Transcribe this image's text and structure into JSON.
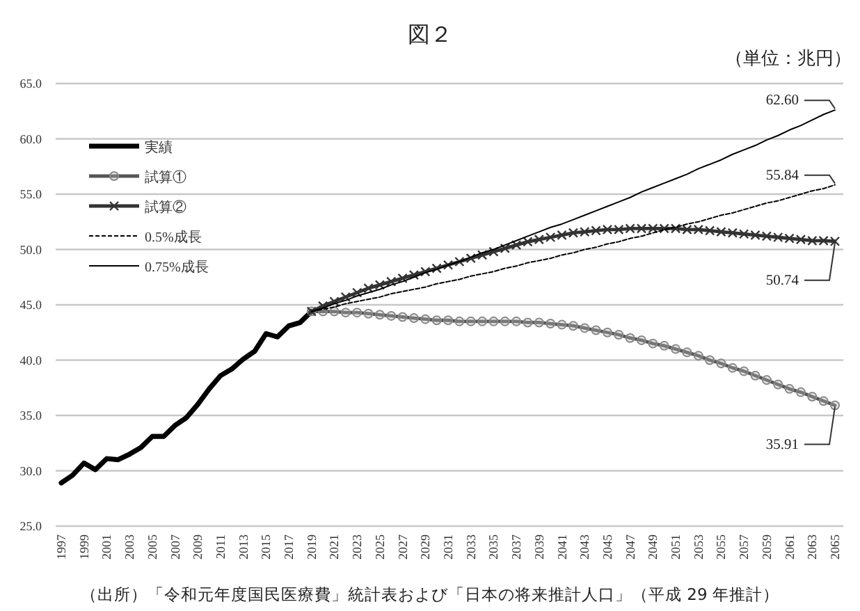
{
  "chart_data": {
    "type": "line",
    "title": "図２",
    "categories": [
      "1997",
      null,
      "1999",
      null,
      "2001",
      null,
      "2003",
      null,
      "2005",
      null,
      "2007",
      null,
      "2009",
      null,
      "2011",
      null,
      "2013",
      null,
      "2015",
      null,
      "2017",
      null,
      "2019",
      null,
      "2021",
      null,
      "2023",
      null,
      "2025",
      null,
      "2027",
      null,
      "2029",
      null,
      "2031",
      null,
      "2033",
      null,
      "2035",
      null,
      "2037",
      null,
      "2039",
      null,
      "2041",
      null,
      "2043",
      null,
      "2045",
      null,
      "2047",
      null,
      "2049",
      null,
      "2051",
      null,
      "2053",
      null,
      "2055",
      null,
      "2057",
      null,
      "2059",
      null,
      "2061",
      null,
      "2063",
      null,
      "2065"
    ],
    "series": [
      {
        "name": "実績",
        "color": "#000000",
        "marker": "none",
        "line_style": "solid",
        "values": [
          28.9,
          29.6,
          30.7,
          30.1,
          31.1,
          31.0,
          31.5,
          32.1,
          33.1,
          33.1,
          34.1,
          34.8,
          36.0,
          37.4,
          38.6,
          39.2,
          40.1,
          40.8,
          42.4,
          42.1,
          43.1,
          43.4,
          44.4,
          null,
          null,
          null,
          null,
          null,
          null,
          null,
          null,
          null,
          null,
          null,
          null,
          null,
          null,
          null,
          null,
          null,
          null,
          null,
          null,
          null,
          null,
          null,
          null,
          null,
          null,
          null,
          null,
          null,
          null,
          null,
          null,
          null,
          null,
          null,
          null,
          null,
          null,
          null,
          null,
          null,
          null,
          null,
          null,
          null,
          null
        ]
      },
      {
        "name": "試算①",
        "color": "#555555",
        "marker": "circle",
        "line_style": "solid",
        "values": [
          null,
          null,
          null,
          null,
          null,
          null,
          null,
          null,
          null,
          null,
          null,
          null,
          null,
          null,
          null,
          null,
          null,
          null,
          null,
          null,
          null,
          null,
          44.4,
          44.4,
          44.4,
          44.3,
          44.3,
          44.2,
          44.1,
          44.0,
          43.9,
          43.8,
          43.7,
          43.6,
          43.6,
          43.5,
          43.5,
          43.5,
          43.5,
          43.5,
          43.5,
          43.4,
          43.4,
          43.3,
          43.2,
          43.1,
          42.9,
          42.7,
          42.5,
          42.3,
          42.0,
          41.8,
          41.5,
          41.3,
          41.0,
          40.7,
          40.4,
          40.0,
          39.7,
          39.3,
          39.0,
          38.6,
          38.2,
          37.8,
          37.4,
          37.1,
          36.7,
          36.3,
          35.91
        ]
      },
      {
        "name": "試算②",
        "color": "#333333",
        "marker": "cross",
        "line_style": "solid",
        "values": [
          null,
          null,
          null,
          null,
          null,
          null,
          null,
          null,
          null,
          null,
          null,
          null,
          null,
          null,
          null,
          null,
          null,
          null,
          null,
          null,
          null,
          null,
          44.4,
          44.9,
          45.3,
          45.7,
          46.1,
          46.5,
          46.8,
          47.1,
          47.4,
          47.7,
          48.0,
          48.3,
          48.6,
          48.9,
          49.2,
          49.5,
          49.8,
          50.1,
          50.4,
          50.7,
          50.9,
          51.1,
          51.3,
          51.5,
          51.6,
          51.7,
          51.8,
          51.8,
          51.9,
          51.9,
          51.9,
          51.9,
          51.9,
          51.8,
          51.8,
          51.7,
          51.6,
          51.5,
          51.4,
          51.3,
          51.2,
          51.1,
          51.0,
          50.9,
          50.8,
          50.8,
          50.74
        ]
      },
      {
        "name": "0.5%成長",
        "color": "#000000",
        "marker": "none",
        "line_style": "dashed",
        "values": [
          null,
          null,
          null,
          null,
          null,
          null,
          null,
          null,
          null,
          null,
          null,
          null,
          null,
          null,
          null,
          null,
          null,
          null,
          null,
          null,
          null,
          null,
          44.4,
          44.6,
          44.8,
          45.1,
          45.3,
          45.5,
          45.7,
          46.0,
          46.2,
          46.4,
          46.6,
          46.9,
          47.1,
          47.3,
          47.6,
          47.8,
          48.0,
          48.3,
          48.5,
          48.8,
          49.0,
          49.2,
          49.5,
          49.7,
          50.0,
          50.2,
          50.5,
          50.7,
          51.0,
          51.2,
          51.5,
          51.8,
          52.0,
          52.3,
          52.5,
          52.8,
          53.1,
          53.3,
          53.6,
          53.9,
          54.2,
          54.4,
          54.7,
          55.0,
          55.3,
          55.5,
          55.84
        ]
      },
      {
        "name": "0.75%成長",
        "color": "#000000",
        "marker": "none",
        "line_style": "solid",
        "values": [
          null,
          null,
          null,
          null,
          null,
          null,
          null,
          null,
          null,
          null,
          null,
          null,
          null,
          null,
          null,
          null,
          null,
          null,
          null,
          null,
          null,
          null,
          44.4,
          44.7,
          45.1,
          45.4,
          45.8,
          46.1,
          46.4,
          46.8,
          47.1,
          47.5,
          47.9,
          48.2,
          48.6,
          48.9,
          49.3,
          49.7,
          50.0,
          50.4,
          50.8,
          51.2,
          51.6,
          52.0,
          52.3,
          52.7,
          53.1,
          53.5,
          53.9,
          54.3,
          54.7,
          55.2,
          55.6,
          56.0,
          56.4,
          56.8,
          57.3,
          57.7,
          58.1,
          58.6,
          59.0,
          59.4,
          59.9,
          60.3,
          60.8,
          61.2,
          61.7,
          62.2,
          62.6
        ]
      }
    ],
    "ylim": [
      25,
      65
    ],
    "yticks": [
      {
        "value": 25,
        "label": "25.0"
      },
      {
        "value": 30,
        "label": "30.0"
      },
      {
        "value": 35,
        "label": "35.0"
      },
      {
        "value": 40,
        "label": "40.0"
      },
      {
        "value": 45,
        "label": "45.0"
      },
      {
        "value": 50,
        "label": "50.0"
      },
      {
        "value": 55,
        "label": "55.0"
      },
      {
        "value": 60,
        "label": "60.0"
      },
      {
        "value": 65,
        "label": "65.0"
      }
    ],
    "grid": "y",
    "legend": "top left",
    "annotations": [
      "（単位：兆円）",
      {
        "text": "62.60",
        "x": "2065",
        "y": 62.6
      },
      {
        "text": "55.84",
        "x": "2065",
        "y": 55.84
      },
      {
        "text": "50.74",
        "x": "2065",
        "y": 50.74
      },
      {
        "text": "35.91",
        "x": "2065",
        "y": 35.91
      },
      "（出所）「令和元年度国民医療費」統計表および「日本の将来推計人口」（平成 29 年推計）"
    ]
  }
}
